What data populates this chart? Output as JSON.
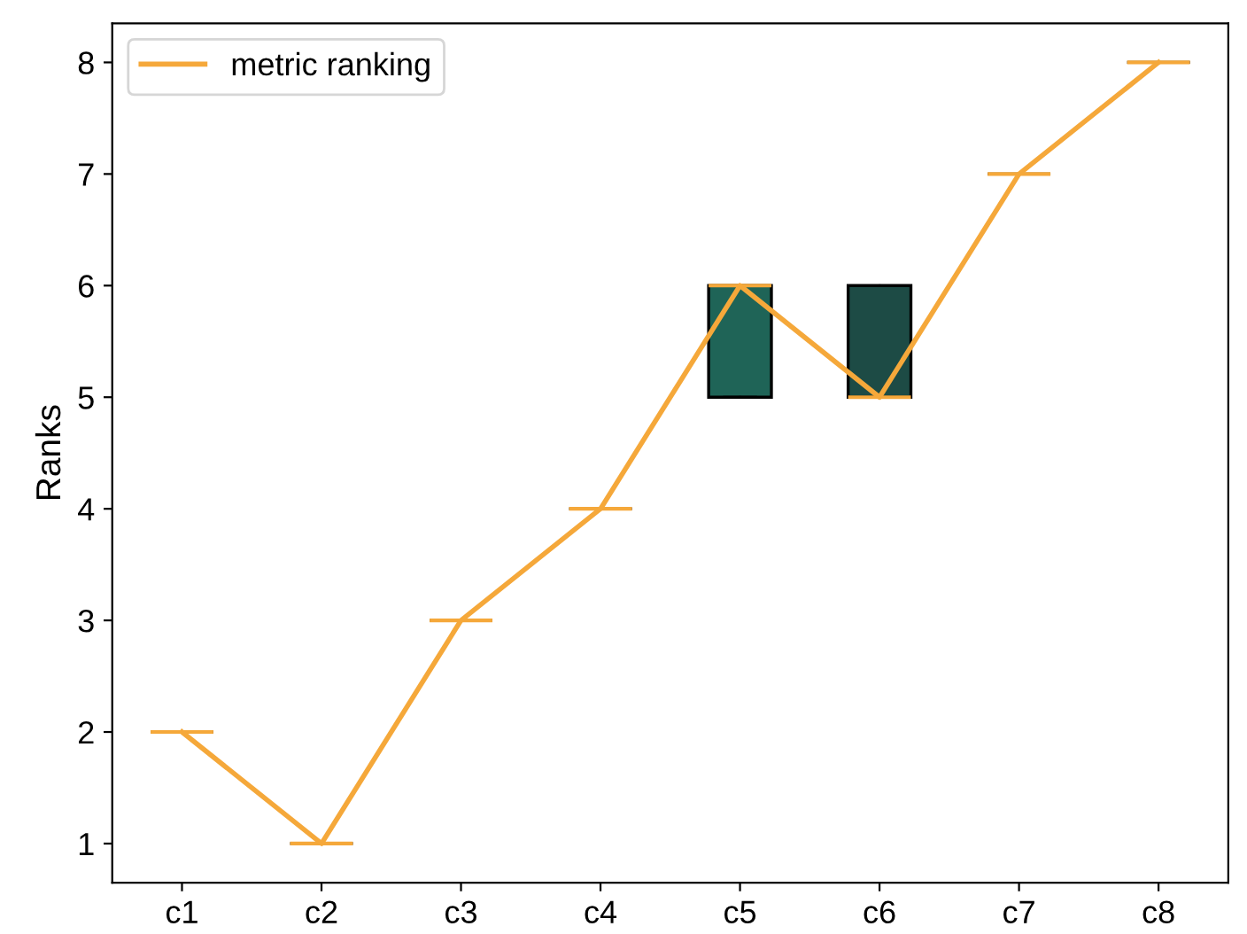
{
  "chart_data": {
    "type": "box",
    "ylabel": "Ranks",
    "categories": [
      "c1",
      "c2",
      "c3",
      "c4",
      "c5",
      "c6",
      "c7",
      "c8"
    ],
    "ylim": [
      0.65,
      8.35
    ],
    "yticks": [
      1,
      2,
      3,
      4,
      5,
      6,
      7,
      8
    ],
    "legend": "top left",
    "grid": false,
    "series": [
      {
        "colors": [
          null,
          null,
          null,
          null,
          "#1f6457",
          "#1d4b45",
          null,
          null
        ],
        "boxes": [
          {
            "low": 2,
            "q1": 2,
            "median": 2,
            "q3": 2,
            "high": 2
          },
          {
            "low": 1,
            "q1": 1,
            "median": 1,
            "q3": 1,
            "high": 1
          },
          {
            "low": 3,
            "q1": 3,
            "median": 3,
            "q3": 3,
            "high": 3
          },
          {
            "low": 4,
            "q1": 4,
            "median": 4,
            "q3": 4,
            "high": 4
          },
          {
            "low": 5,
            "q1": 5,
            "median": 6,
            "q3": 6,
            "high": 6
          },
          {
            "low": 5,
            "q1": 5,
            "median": 5,
            "q3": 6,
            "high": 6
          },
          {
            "low": 7,
            "q1": 7,
            "median": 7,
            "q3": 7,
            "high": 7
          },
          {
            "low": 8,
            "q1": 8,
            "median": 8,
            "q3": 8,
            "high": 8
          }
        ]
      },
      {
        "type": "line",
        "name": "metric ranking",
        "color": "#f5a83a",
        "values": [
          2,
          1,
          3,
          4,
          6,
          5,
          7,
          8
        ]
      }
    ]
  }
}
